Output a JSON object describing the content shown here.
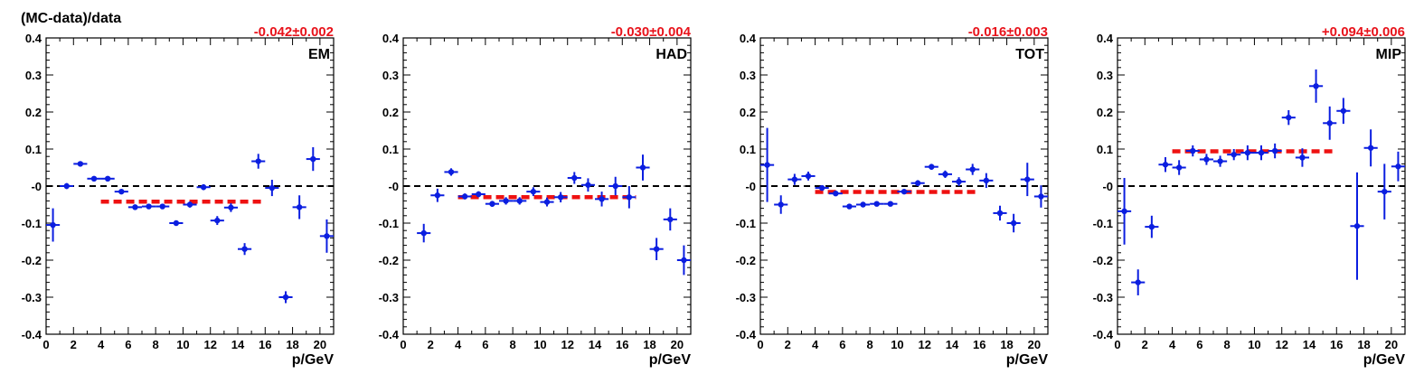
{
  "figure": {
    "ylabel": "(MC-data)/data",
    "colors": {
      "points": "#0b1ee0",
      "fit": "#ee1111",
      "fit_label": "#e8131b",
      "zero_line": "#000000"
    }
  },
  "chart_data": [
    {
      "type": "scatter",
      "panel_label": "EM",
      "fit_label": "-0.042±0.002",
      "xlabel": "p/GeV",
      "ylabel": "(MC-data)/data",
      "xlim": [
        0,
        21
      ],
      "ylim": [
        -0.4,
        0.4
      ],
      "x_ticks": [
        0,
        2,
        4,
        6,
        8,
        10,
        12,
        14,
        16,
        18,
        20
      ],
      "y_ticks": [
        -0.4,
        -0.3,
        -0.2,
        -0.1,
        0,
        0.1,
        0.2,
        0.3,
        0.4
      ],
      "y_tick_labels": [
        "-0.4",
        "-0.3",
        "-0.2",
        "-0.1",
        "-0",
        "0.1",
        "0.2",
        "0.3",
        "0.4"
      ],
      "zero_line": true,
      "fit": {
        "value": -0.042,
        "x_range": [
          4,
          16
        ]
      },
      "series": [
        {
          "x": [
            0.5,
            1.5,
            2.5,
            3.5,
            4.5,
            5.5,
            6.5,
            7.5,
            8.5,
            9.5,
            10.5,
            11.5,
            12.5,
            13.5,
            14.5,
            15.5,
            16.5,
            17.5,
            18.5,
            19.5,
            20.5
          ],
          "y": [
            -0.105,
            0.0,
            0.06,
            0.02,
            0.02,
            -0.015,
            -0.057,
            -0.055,
            -0.055,
            -0.1,
            -0.05,
            -0.003,
            -0.093,
            -0.058,
            -0.17,
            0.067,
            -0.005,
            -0.3,
            -0.057,
            0.073,
            -0.135
          ],
          "yerr": [
            0.045,
            0.008,
            0.006,
            0.006,
            0.006,
            0.006,
            0.006,
            0.006,
            0.006,
            0.006,
            0.008,
            0.008,
            0.012,
            0.012,
            0.016,
            0.02,
            0.022,
            0.016,
            0.032,
            0.032,
            0.045
          ]
        }
      ]
    },
    {
      "type": "scatter",
      "panel_label": "HAD",
      "fit_label": "-0.030±0.004",
      "xlabel": "p/GeV",
      "ylabel": "",
      "xlim": [
        0,
        21
      ],
      "ylim": [
        -0.4,
        0.4
      ],
      "x_ticks": [
        0,
        2,
        4,
        6,
        8,
        10,
        12,
        14,
        16,
        18,
        20
      ],
      "y_ticks": [
        -0.4,
        -0.3,
        -0.2,
        -0.1,
        0,
        0.1,
        0.2,
        0.3,
        0.4
      ],
      "y_tick_labels": [
        "-0.4",
        "-0.3",
        "-0.2",
        "-0.1",
        "-0",
        "0.1",
        "0.2",
        "0.3",
        "0.4"
      ],
      "zero_line": true,
      "fit": {
        "value": -0.03,
        "x_range": [
          4,
          17
        ]
      },
      "series": [
        {
          "x": [
            1.5,
            2.5,
            3.5,
            4.5,
            5.5,
            6.5,
            7.5,
            8.5,
            9.5,
            10.5,
            11.5,
            12.5,
            13.5,
            14.5,
            15.5,
            16.5,
            17.5,
            18.5,
            19.5,
            20.5
          ],
          "y": [
            -0.127,
            -0.025,
            0.038,
            -0.028,
            -0.022,
            -0.048,
            -0.04,
            -0.04,
            -0.015,
            -0.043,
            -0.03,
            0.022,
            0.003,
            -0.035,
            0.0,
            -0.03,
            0.05,
            -0.17,
            -0.09,
            -0.2
          ],
          "yerr": [
            0.025,
            0.018,
            0.01,
            0.008,
            0.008,
            0.008,
            0.01,
            0.01,
            0.012,
            0.012,
            0.014,
            0.016,
            0.018,
            0.02,
            0.025,
            0.03,
            0.035,
            0.03,
            0.03,
            0.04
          ]
        }
      ]
    },
    {
      "type": "scatter",
      "panel_label": "TOT",
      "fit_label": "-0.016±0.003",
      "xlabel": "p/GeV",
      "ylabel": "",
      "xlim": [
        0,
        21
      ],
      "ylim": [
        -0.4,
        0.4
      ],
      "x_ticks": [
        0,
        2,
        4,
        6,
        8,
        10,
        12,
        14,
        16,
        18,
        20
      ],
      "y_ticks": [
        -0.4,
        -0.3,
        -0.2,
        -0.1,
        0,
        0.1,
        0.2,
        0.3,
        0.4
      ],
      "y_tick_labels": [
        "-0.4",
        "-0.3",
        "-0.2",
        "-0.1",
        "-0",
        "0.1",
        "0.2",
        "0.3",
        "0.4"
      ],
      "zero_line": true,
      "fit": {
        "value": -0.016,
        "x_range": [
          4,
          16
        ]
      },
      "series": [
        {
          "x": [
            0.5,
            1.5,
            2.5,
            3.5,
            4.5,
            5.5,
            6.5,
            7.5,
            8.5,
            9.5,
            10.5,
            11.5,
            12.5,
            13.5,
            14.5,
            15.5,
            16.5,
            17.5,
            18.5,
            19.5,
            20.5
          ],
          "y": [
            0.057,
            -0.05,
            0.018,
            0.027,
            -0.005,
            -0.02,
            -0.055,
            -0.05,
            -0.048,
            -0.048,
            -0.015,
            0.008,
            0.052,
            0.032,
            0.012,
            0.045,
            0.015,
            -0.073,
            -0.1,
            0.018,
            -0.028
          ],
          "yerr": [
            0.1,
            0.025,
            0.015,
            0.012,
            0.006,
            0.006,
            0.006,
            0.006,
            0.006,
            0.006,
            0.006,
            0.008,
            0.008,
            0.01,
            0.012,
            0.015,
            0.02,
            0.02,
            0.025,
            0.045,
            0.03
          ]
        }
      ]
    },
    {
      "type": "scatter",
      "panel_label": "MIP",
      "fit_label": "+0.094±0.006",
      "xlabel": "p/GeV",
      "ylabel": "",
      "xlim": [
        0,
        21
      ],
      "ylim": [
        -0.4,
        0.4
      ],
      "x_ticks": [
        0,
        2,
        4,
        6,
        8,
        10,
        12,
        14,
        16,
        18,
        20
      ],
      "y_ticks": [
        -0.4,
        -0.3,
        -0.2,
        -0.1,
        0,
        0.1,
        0.2,
        0.3,
        0.4
      ],
      "y_tick_labels": [
        "-0.4",
        "-0.3",
        "-0.2",
        "-0.1",
        "-0",
        "0.1",
        "0.2",
        "0.3",
        "0.4"
      ],
      "zero_line": true,
      "fit": {
        "value": 0.094,
        "x_range": [
          4,
          16
        ]
      },
      "series": [
        {
          "x": [
            0.5,
            1.5,
            2.5,
            3.5,
            4.5,
            5.5,
            6.5,
            7.5,
            8.5,
            9.5,
            10.5,
            11.5,
            12.5,
            13.5,
            14.5,
            15.5,
            16.5,
            17.5,
            18.5,
            19.5,
            20.5
          ],
          "y": [
            -0.068,
            -0.26,
            -0.11,
            0.058,
            0.05,
            0.095,
            0.072,
            0.067,
            0.085,
            0.09,
            0.09,
            0.095,
            0.185,
            0.077,
            0.27,
            0.17,
            0.203,
            -0.108,
            0.103,
            -0.015,
            0.053
          ],
          "yerr": [
            0.09,
            0.035,
            0.03,
            0.02,
            0.02,
            0.015,
            0.015,
            0.015,
            0.015,
            0.02,
            0.02,
            0.02,
            0.02,
            0.025,
            0.045,
            0.045,
            0.035,
            0.145,
            0.05,
            0.075,
            0.04
          ]
        }
      ]
    }
  ]
}
